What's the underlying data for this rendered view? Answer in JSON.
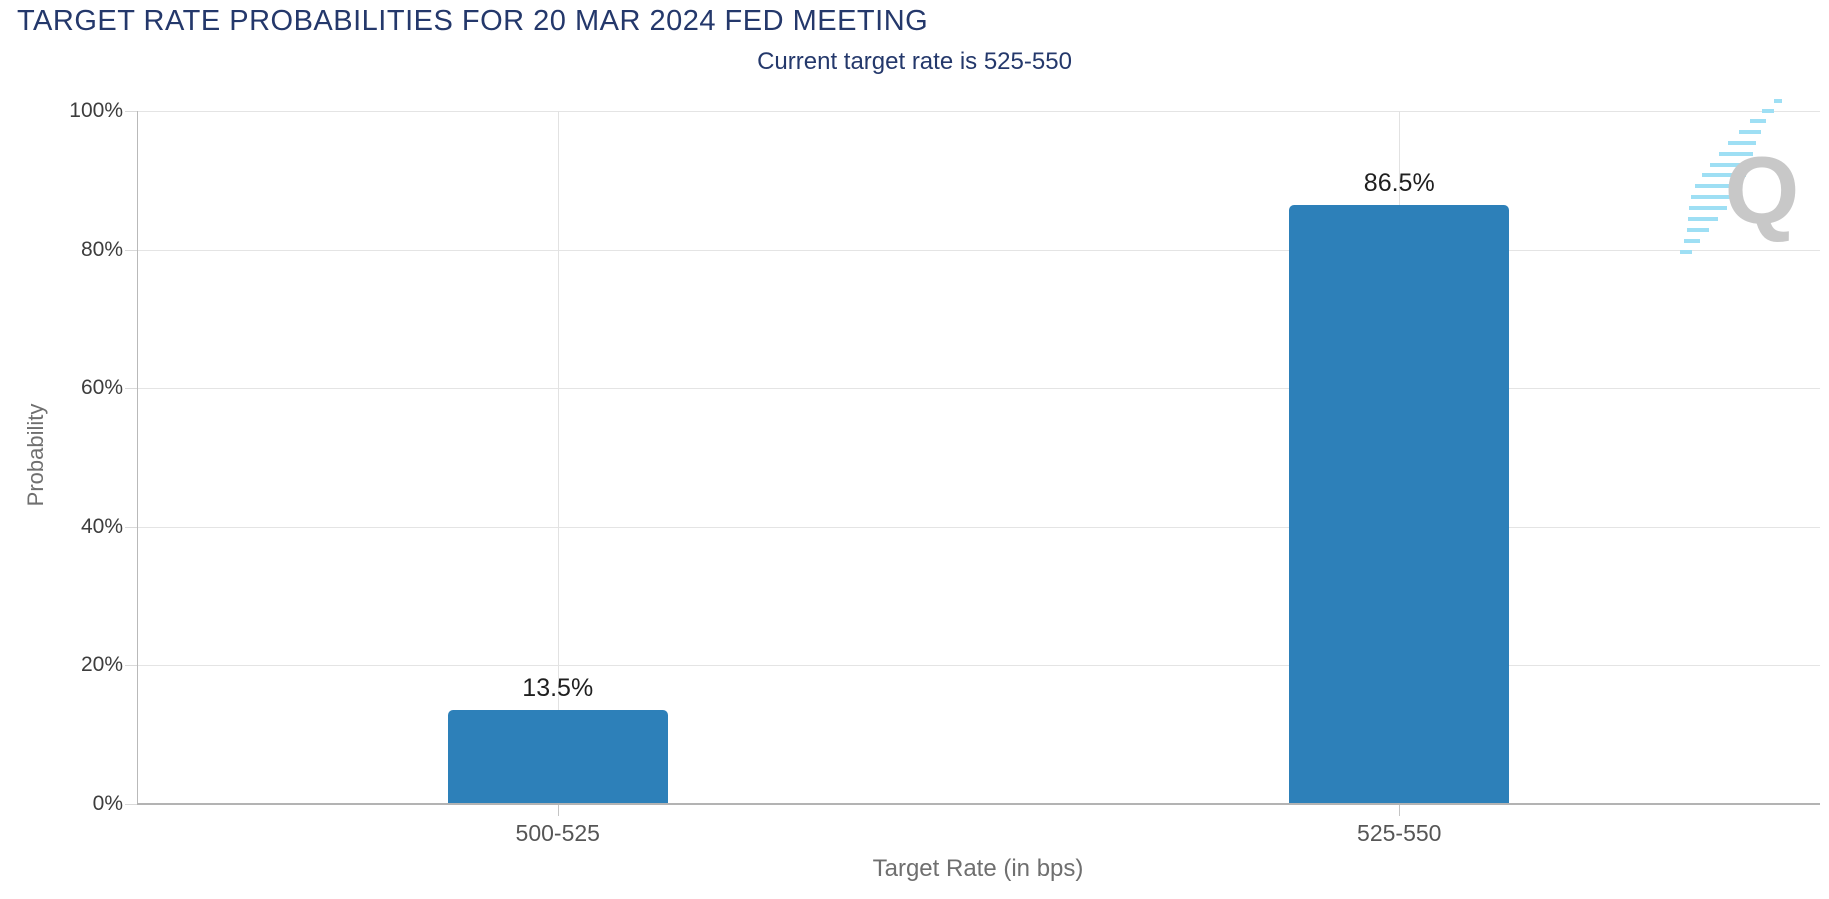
{
  "header": {
    "title": "TARGET RATE PROBABILITIES FOR 20 MAR 2024 FED MEETING",
    "subtitle": "Current target rate is 525-550"
  },
  "chart_data": {
    "type": "bar",
    "title": "TARGET RATE PROBABILITIES FOR 20 MAR 2024 FED MEETING",
    "subtitle": "Current target rate is 525-550",
    "categories": [
      "500-525",
      "525-550"
    ],
    "values": [
      13.5,
      86.5
    ],
    "value_labels": [
      "13.5%",
      "86.5%"
    ],
    "xlabel": "Target Rate (in bps)",
    "ylabel": "Probability",
    "ylim": [
      0,
      100
    ],
    "yticks": [
      0,
      20,
      40,
      60,
      80,
      100
    ],
    "ytick_labels": [
      "0%",
      "20%",
      "40%",
      "60%",
      "80%",
      "100%"
    ],
    "grid": true,
    "legend": "none",
    "bar_color": "#2d80b9"
  },
  "watermark": {
    "icon": "q-logo",
    "letter": "Q"
  },
  "colors": {
    "navy": "#24386b",
    "bar": "#2d80b9",
    "watermark-gray": "#c8c8c8",
    "watermark-cyan": "#9edff4"
  }
}
